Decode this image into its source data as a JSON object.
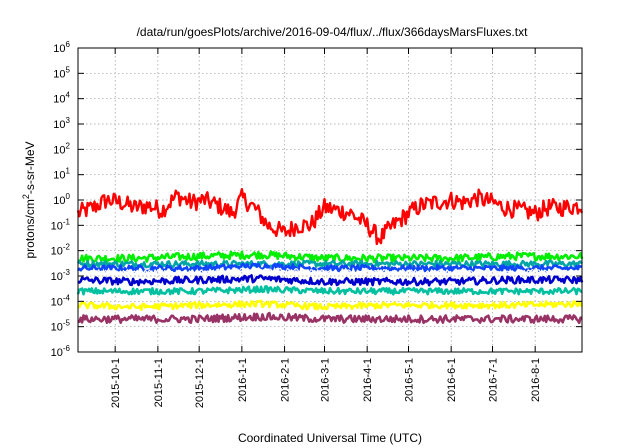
{
  "chart_data": {
    "type": "line",
    "title": "/data/run/goesPlots/archive/2016-09-04/flux/../flux/366daysMarsFluxes.txt",
    "xlabel": "Coordinated Universal Time (UTC)",
    "ylabel": "protons/cm²-s-sr-MeV",
    "yscale": "log",
    "ylim": [
      1e-06,
      1000000.0
    ],
    "xlim": [
      "2015-09-04",
      "2016-09-04"
    ],
    "grid": true,
    "x_ticks": [
      "2015-10-1",
      "2015-11-1",
      "2015-12-1",
      "2016-1-1",
      "2016-2-1",
      "2016-3-1",
      "2016-4-1",
      "2016-5-1",
      "2016-6-1",
      "2016-7-1",
      "2016-8-1"
    ],
    "y_ticks": [
      {
        "value": 1e-06,
        "base": "10",
        "exp": "-6"
      },
      {
        "value": 1e-05,
        "base": "10",
        "exp": "-5"
      },
      {
        "value": 0.0001,
        "base": "10",
        "exp": "-4"
      },
      {
        "value": 0.001,
        "base": "10",
        "exp": "-3"
      },
      {
        "value": 0.01,
        "base": "10",
        "exp": "-2"
      },
      {
        "value": 0.1,
        "base": "10",
        "exp": "-1"
      },
      {
        "value": 1,
        "base": "10",
        "exp": "0"
      },
      {
        "value": 10,
        "base": "10",
        "exp": "1"
      },
      {
        "value": 100,
        "base": "10",
        "exp": "2"
      },
      {
        "value": 1000,
        "base": "10",
        "exp": "3"
      },
      {
        "value": 10000,
        "base": "10",
        "exp": "4"
      },
      {
        "value": 100000,
        "base": "10",
        "exp": "5"
      },
      {
        "value": 1000000,
        "base": "10",
        "exp": "6"
      }
    ],
    "series": [
      {
        "color": "#ff0000",
        "x": [
          "2015-09-04",
          "2015-09-15",
          "2015-09-25",
          "2015-10-05",
          "2015-10-15",
          "2015-10-25",
          "2015-11-04",
          "2015-11-15",
          "2015-11-25",
          "2015-12-05",
          "2015-12-15",
          "2015-12-25",
          "2016-01-01",
          "2016-01-10",
          "2016-01-20",
          "2016-02-01",
          "2016-02-10",
          "2016-02-20",
          "2016-03-01",
          "2016-03-10",
          "2016-03-20",
          "2016-04-01",
          "2016-04-10",
          "2016-04-20",
          "2016-05-01",
          "2016-05-10",
          "2016-05-20",
          "2016-06-01",
          "2016-06-10",
          "2016-06-20",
          "2016-07-01",
          "2016-07-10",
          "2016-07-20",
          "2016-08-01",
          "2016-08-10",
          "2016-08-20",
          "2016-09-04"
        ],
        "y": [
          0.3,
          0.5,
          1.0,
          0.8,
          0.5,
          0.6,
          0.4,
          1.5,
          0.8,
          1.0,
          0.6,
          0.3,
          1.2,
          0.5,
          0.1,
          0.05,
          0.1,
          0.1,
          0.5,
          0.4,
          0.3,
          0.1,
          0.03,
          0.1,
          0.3,
          0.6,
          0.8,
          1.0,
          0.8,
          1.2,
          0.8,
          0.5,
          0.4,
          0.3,
          0.5,
          0.5,
          0.6
        ]
      },
      {
        "color": "#00ee00",
        "x": [
          "2015-09-04",
          "2015-10-15",
          "2015-11-30",
          "2016-01-15",
          "2016-03-01",
          "2016-04-15",
          "2016-06-01",
          "2016-07-15",
          "2016-09-04"
        ],
        "y": [
          0.005,
          0.005,
          0.006,
          0.007,
          0.005,
          0.005,
          0.005,
          0.006,
          0.006
        ]
      },
      {
        "color": "#00a5a5",
        "x": [
          "2015-09-04",
          "2015-10-15",
          "2015-11-30",
          "2016-01-15",
          "2016-03-01",
          "2016-04-15",
          "2016-06-01",
          "2016-07-15",
          "2016-09-04"
        ],
        "y": [
          0.003,
          0.003,
          0.003,
          0.003,
          0.003,
          0.003,
          0.003,
          0.003,
          0.003
        ]
      },
      {
        "color": "#1144ff",
        "x": [
          "2015-09-04",
          "2015-10-15",
          "2015-11-30",
          "2016-01-15",
          "2016-03-01",
          "2016-04-15",
          "2016-06-01",
          "2016-07-15",
          "2016-09-04"
        ],
        "y": [
          0.002,
          0.002,
          0.002,
          0.0025,
          0.002,
          0.002,
          0.002,
          0.002,
          0.002
        ]
      },
      {
        "color": "#ffffff",
        "x": [
          "2015-09-04",
          "2015-10-15",
          "2015-11-30",
          "2016-01-15",
          "2016-03-01",
          "2016-04-15",
          "2016-06-01",
          "2016-07-15",
          "2016-09-04"
        ],
        "y": [
          0.0015,
          0.0015,
          0.0015,
          0.0018,
          0.0015,
          0.0015,
          0.0015,
          0.0015,
          0.0015
        ]
      },
      {
        "color": "#0000cc",
        "x": [
          "2015-09-04",
          "2015-10-15",
          "2015-11-30",
          "2016-01-15",
          "2016-03-01",
          "2016-04-15",
          "2016-06-01",
          "2016-07-15",
          "2016-09-04"
        ],
        "y": [
          0.0007,
          0.0006,
          0.0007,
          0.0008,
          0.0006,
          0.0006,
          0.0006,
          0.0007,
          0.0007
        ]
      },
      {
        "color": "#00c0a0",
        "x": [
          "2015-09-04",
          "2015-10-15",
          "2015-11-30",
          "2016-01-15",
          "2016-03-01",
          "2016-04-15",
          "2016-06-01",
          "2016-07-15",
          "2016-09-04"
        ],
        "y": [
          0.00025,
          0.00025,
          0.00025,
          0.0003,
          0.00025,
          0.00025,
          0.00025,
          0.00025,
          0.00025
        ]
      },
      {
        "color": "#ffff00",
        "x": [
          "2015-09-04",
          "2015-10-15",
          "2015-11-30",
          "2016-01-15",
          "2016-03-01",
          "2016-04-15",
          "2016-06-01",
          "2016-07-15",
          "2016-09-04"
        ],
        "y": [
          7e-05,
          6e-05,
          7e-05,
          8e-05,
          6e-05,
          7e-05,
          7e-05,
          7e-05,
          8e-05
        ]
      },
      {
        "color": "#993366",
        "x": [
          "2015-09-04",
          "2015-10-15",
          "2015-11-30",
          "2016-01-15",
          "2016-03-01",
          "2016-04-15",
          "2016-06-01",
          "2016-07-15",
          "2016-09-04"
        ],
        "y": [
          2e-05,
          2e-05,
          2e-05,
          2.5e-05,
          2e-05,
          2e-05,
          2e-05,
          2e-05,
          2e-05
        ]
      }
    ]
  }
}
